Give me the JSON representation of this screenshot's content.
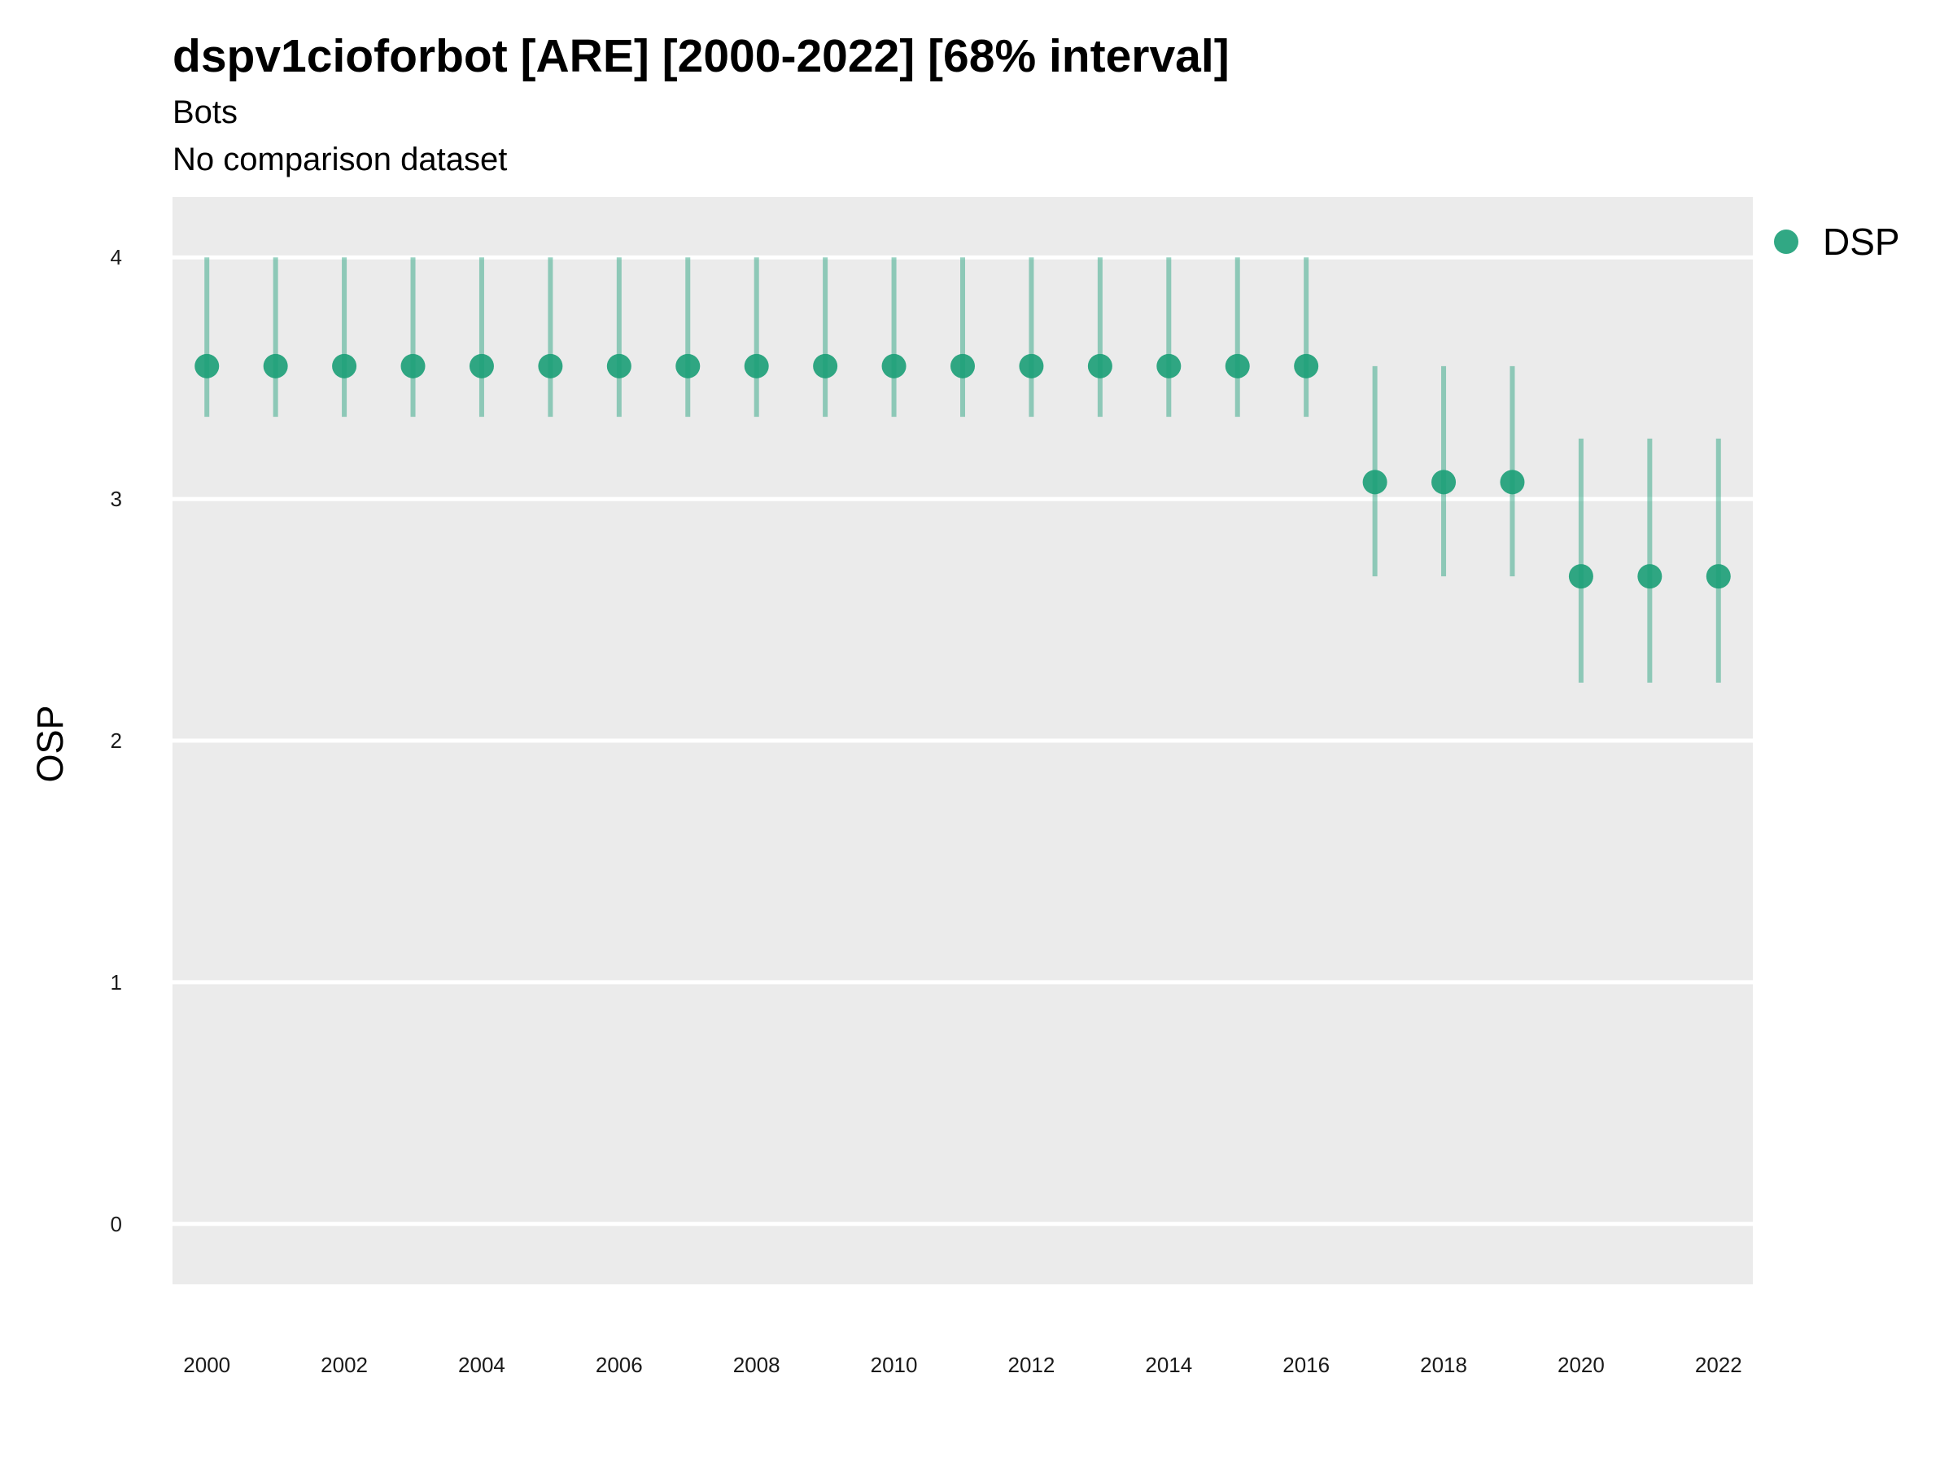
{
  "chart_data": {
    "type": "scatter",
    "title": "dspv1cioforbot [ARE] [2000-2022] [68% interval]",
    "subtitle": "Bots",
    "subtitle2": "No comparison dataset",
    "ylabel": "OSP",
    "xlabel": "",
    "ylim": [
      -0.25,
      4.25
    ],
    "xlim": [
      1999.5,
      2022.5
    ],
    "yticks": [
      0,
      1,
      2,
      3,
      4
    ],
    "xticks": [
      2000,
      2002,
      2004,
      2006,
      2008,
      2010,
      2012,
      2014,
      2016,
      2018,
      2020,
      2022
    ],
    "grid": true,
    "legend_position": "top-right",
    "series": [
      {
        "name": "DSP",
        "color": "#1b9e77",
        "x": [
          2000,
          2001,
          2002,
          2003,
          2004,
          2005,
          2006,
          2007,
          2008,
          2009,
          2010,
          2011,
          2012,
          2013,
          2014,
          2015,
          2016,
          2017,
          2018,
          2019,
          2020,
          2021,
          2022
        ],
        "y": [
          3.55,
          3.55,
          3.55,
          3.55,
          3.55,
          3.55,
          3.55,
          3.55,
          3.55,
          3.55,
          3.55,
          3.55,
          3.55,
          3.55,
          3.55,
          3.55,
          3.55,
          3.07,
          3.07,
          3.07,
          2.68,
          2.68,
          2.68
        ],
        "lower": [
          3.34,
          3.34,
          3.34,
          3.34,
          3.34,
          3.34,
          3.34,
          3.34,
          3.34,
          3.34,
          3.34,
          3.34,
          3.34,
          3.34,
          3.34,
          3.34,
          3.34,
          2.68,
          2.68,
          2.68,
          2.24,
          2.24,
          2.24
        ],
        "upper": [
          4.0,
          4.0,
          4.0,
          4.0,
          4.0,
          4.0,
          4.0,
          4.0,
          4.0,
          4.0,
          4.0,
          4.0,
          4.0,
          4.0,
          4.0,
          4.0,
          4.0,
          3.55,
          3.55,
          3.55,
          3.25,
          3.25,
          3.25
        ]
      }
    ]
  }
}
